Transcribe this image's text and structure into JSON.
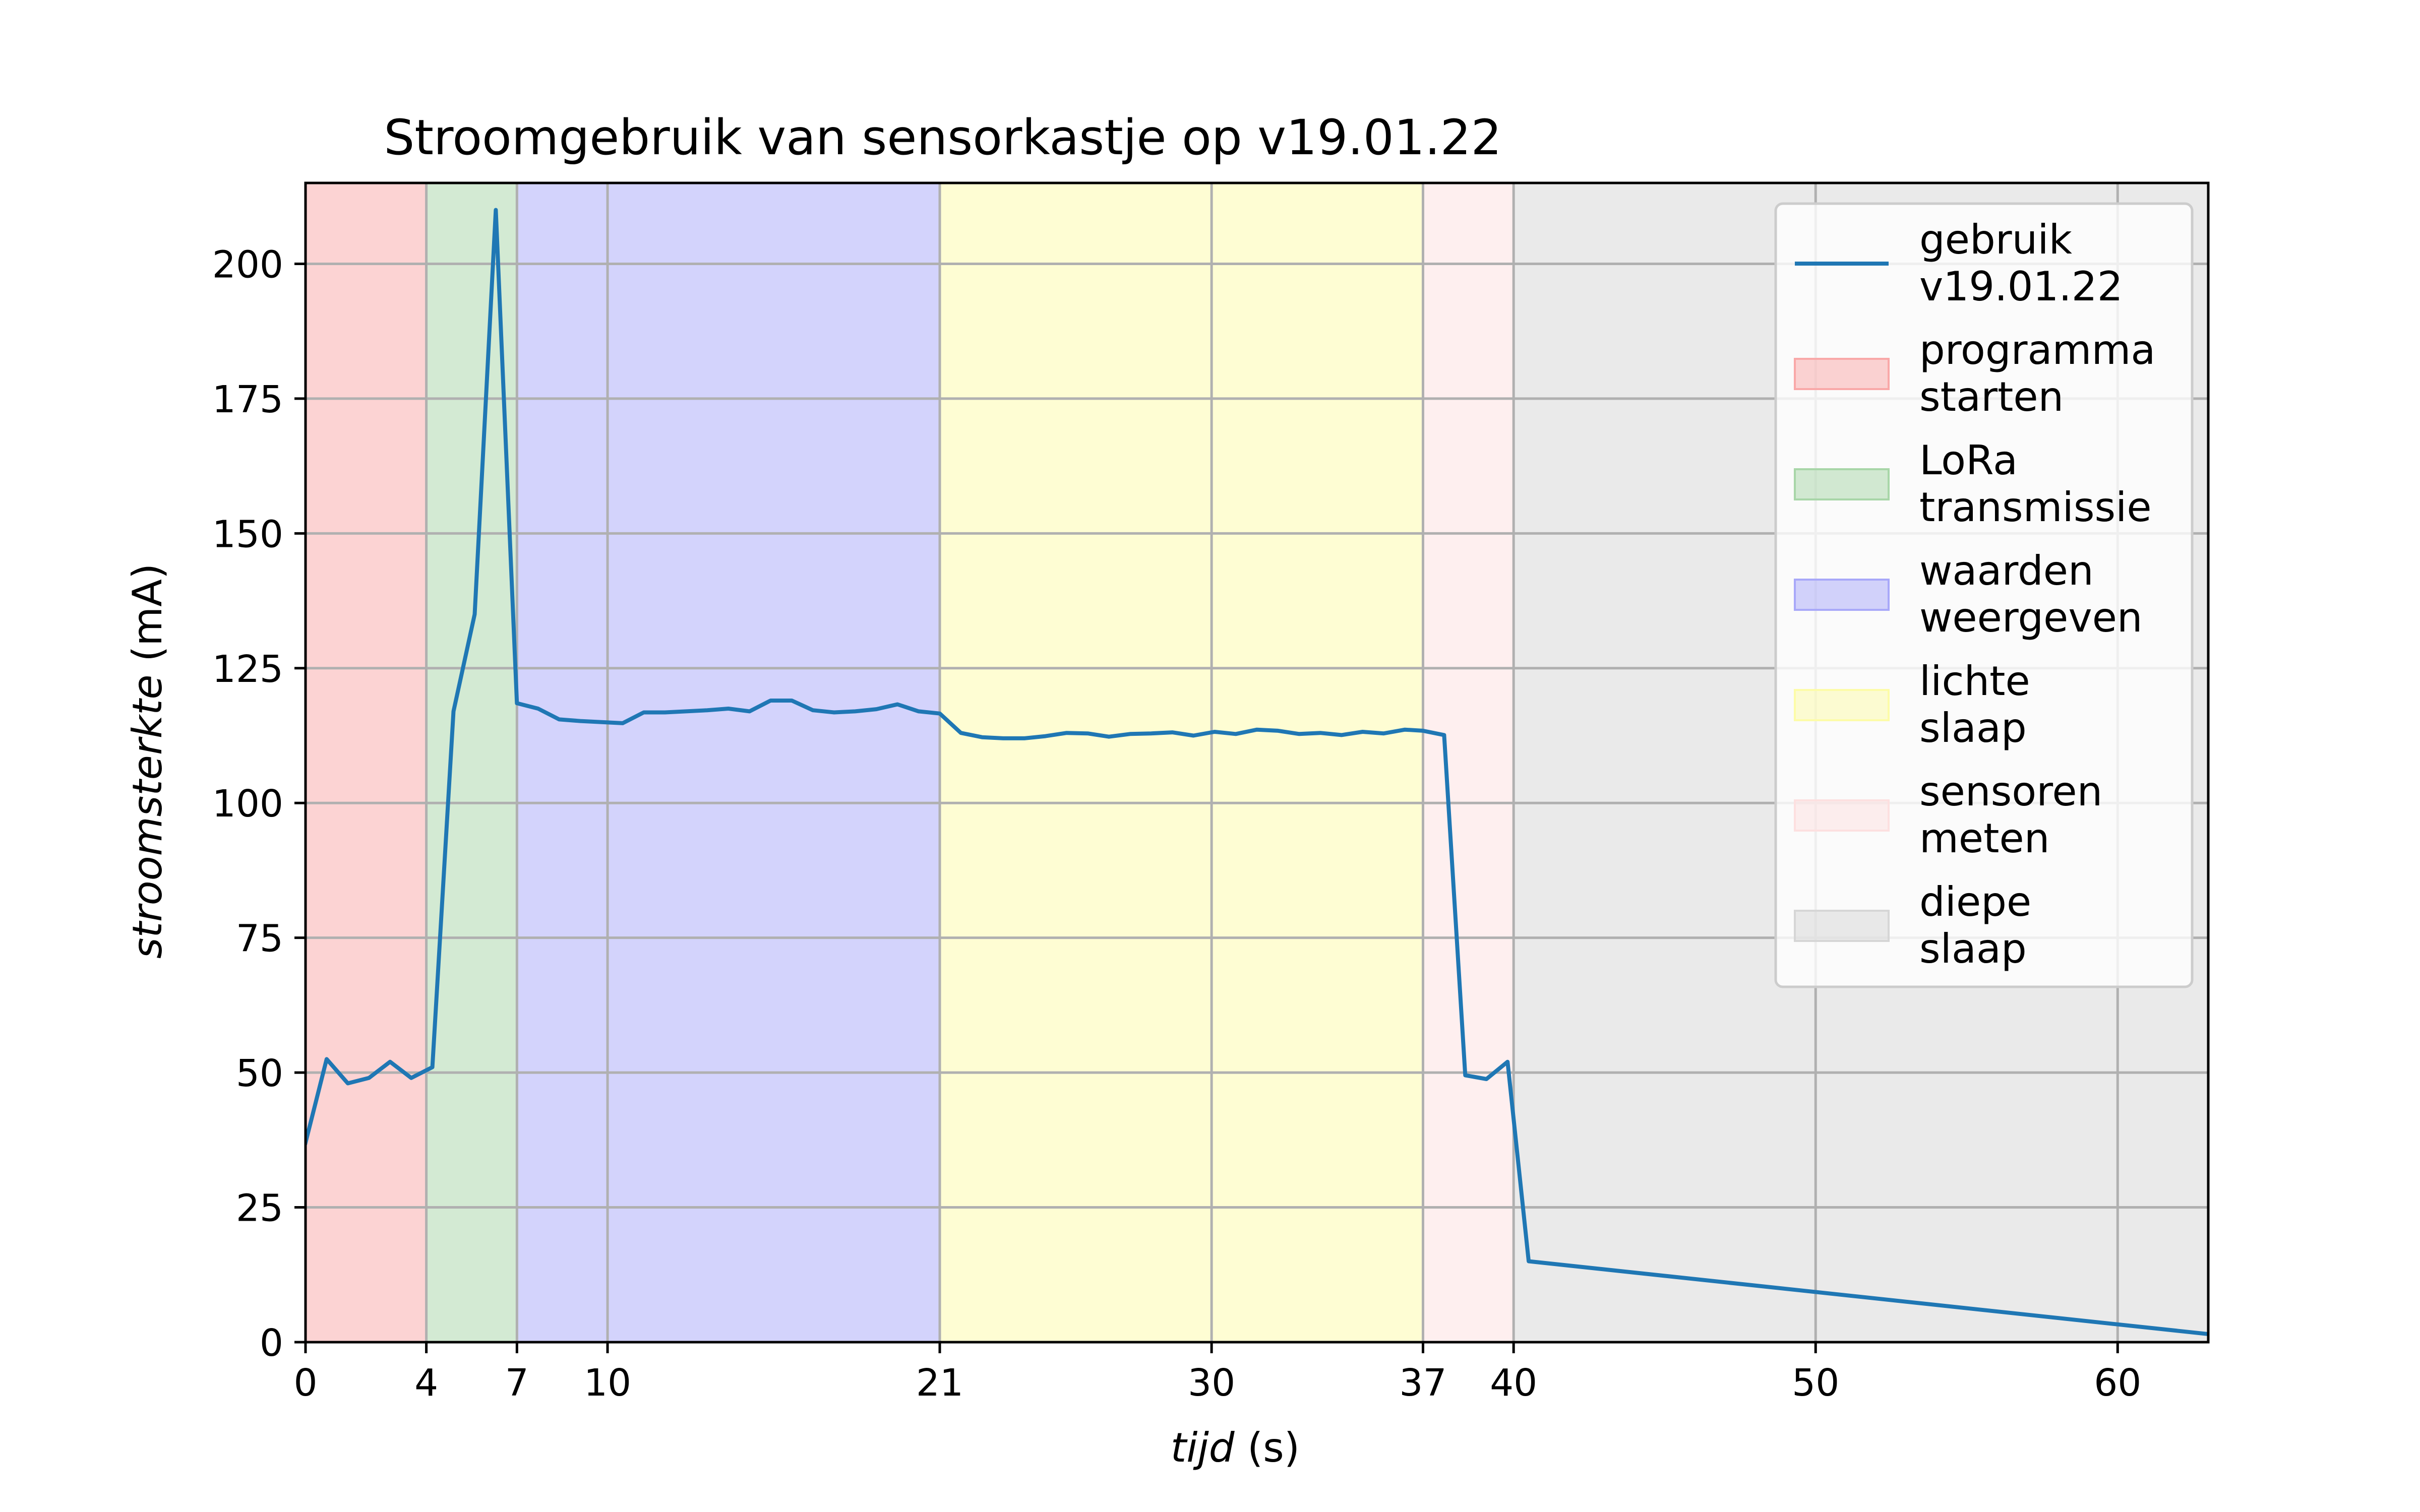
{
  "chart_data": {
    "type": "line",
    "title": "Stroomgebruik van sensorkastje op v19.01.22",
    "xlabel_italic": "tijd",
    "xlabel_unit": "(s)",
    "ylabel_italic": "stroomsterkte",
    "ylabel_unit": "(mA)",
    "xlim": [
      0,
      63
    ],
    "ylim": [
      0,
      215
    ],
    "xticks": [
      0,
      4,
      7,
      10,
      21,
      30,
      37,
      40,
      50,
      60
    ],
    "yticks": [
      0,
      25,
      50,
      75,
      100,
      125,
      150,
      175,
      200
    ],
    "grid": true,
    "legend_position": "top-right",
    "series": [
      {
        "name_lines": [
          "gebruik",
          "v19.01.22"
        ],
        "color": "#1f77b4",
        "x": [
          0,
          0.7,
          1.4,
          2.1,
          2.8,
          3.5,
          4.2,
          4.9,
          5.6,
          6.3,
          7.0,
          7.7,
          8.4,
          9.1,
          9.8,
          10.5,
          11.2,
          11.9,
          12.6,
          13.3,
          14.0,
          14.7,
          15.4,
          16.1,
          16.8,
          17.5,
          18.2,
          18.9,
          19.6,
          20.3,
          21.0,
          21.7,
          22.4,
          23.1,
          23.8,
          24.5,
          25.2,
          25.9,
          26.6,
          27.3,
          28.0,
          28.7,
          29.4,
          30.1,
          30.8,
          31.5,
          32.2,
          32.9,
          33.6,
          34.3,
          35.0,
          35.7,
          36.4,
          37.0,
          37.7,
          38.4,
          39.1,
          39.8,
          40.5,
          63.0
        ],
        "values": [
          37,
          52.5,
          48,
          49,
          52,
          49,
          51,
          117,
          135,
          210,
          118.5,
          117.5,
          115.5,
          115.2,
          115,
          114.8,
          116.8,
          116.8,
          117,
          117.2,
          117.5,
          117,
          119,
          119,
          117.2,
          116.8,
          117,
          117.4,
          118.3,
          117,
          116.6,
          113,
          112.2,
          112,
          112,
          112.4,
          113,
          112.9,
          112.3,
          112.8,
          112.9,
          113.1,
          112.5,
          113.2,
          112.8,
          113.6,
          113.4,
          112.8,
          113,
          112.6,
          113.2,
          112.9,
          113.6,
          113.4,
          112.6,
          49.5,
          48.8,
          52,
          15,
          1.5
        ]
      }
    ],
    "phases": [
      {
        "label_lines": [
          "programma",
          "starten"
        ],
        "from": 0,
        "to": 4,
        "color": "#f9a8a8"
      },
      {
        "label_lines": [
          "LoRa",
          "transmissie"
        ],
        "from": 4,
        "to": 7,
        "color": "#a8d6a8"
      },
      {
        "label_lines": [
          "waarden",
          "weergeven"
        ],
        "from": 7,
        "to": 21,
        "color": "#a8a8f9"
      },
      {
        "label_lines": [
          "lichte",
          "slaap"
        ],
        "from": 21,
        "to": 37,
        "color": "#fdfca8"
      },
      {
        "label_lines": [
          "sensoren",
          "meten"
        ],
        "from": 37,
        "to": 40,
        "color": "#fde0e0"
      },
      {
        "label_lines": [
          "diepe",
          "slaap"
        ],
        "from": 40,
        "to": 63,
        "color": "#d6d6d6"
      }
    ]
  }
}
